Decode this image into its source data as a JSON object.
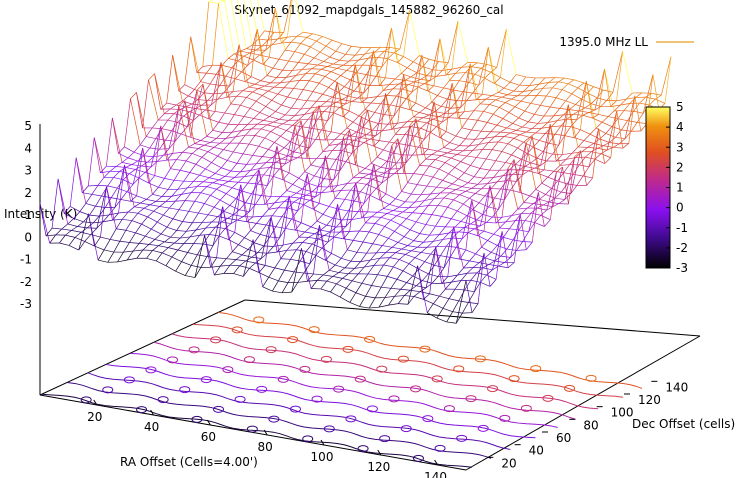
{
  "chart_data": {
    "type": "surface3d",
    "title": "Skynet_61092_mapdgals_145882_96260_cal",
    "legend": [
      {
        "label": "1395.0 MHz LL",
        "color": "#e8a020"
      }
    ],
    "zlabel": "Intensity (K)",
    "xlabel": "RA Offset (Cells=4.00')",
    "ylabel": "Dec Offset (cells)",
    "x_ticks": [
      "20",
      "40",
      "60",
      "80",
      "100",
      "120",
      "140"
    ],
    "y_ticks": [
      "20",
      "40",
      "60",
      "80",
      "100",
      "120",
      "140"
    ],
    "z_ticks": [
      "5",
      "4",
      "3",
      "2",
      "1",
      "0",
      "-1",
      "-2",
      "-3"
    ],
    "zlim": [
      -3,
      5
    ],
    "xlim": [
      0,
      150
    ],
    "ylim": [
      0,
      150
    ],
    "colorbar": {
      "ticks": [
        "5",
        "4",
        "3",
        "2",
        "1",
        "0",
        "-1",
        "-2",
        "-3"
      ],
      "range": [
        -3,
        5
      ],
      "palette": [
        "#000000",
        "#3d0a8a",
        "#8a10f0",
        "#c02a8a",
        "#e05020",
        "#f09010",
        "#ffff60"
      ]
    },
    "surface_level_range": [
      -2.5,
      3.2
    ],
    "contour_levels": [
      -2.4,
      -1.8,
      -1.2,
      -0.6,
      0.0,
      0.6,
      1.2,
      1.8,
      2.4
    ]
  }
}
